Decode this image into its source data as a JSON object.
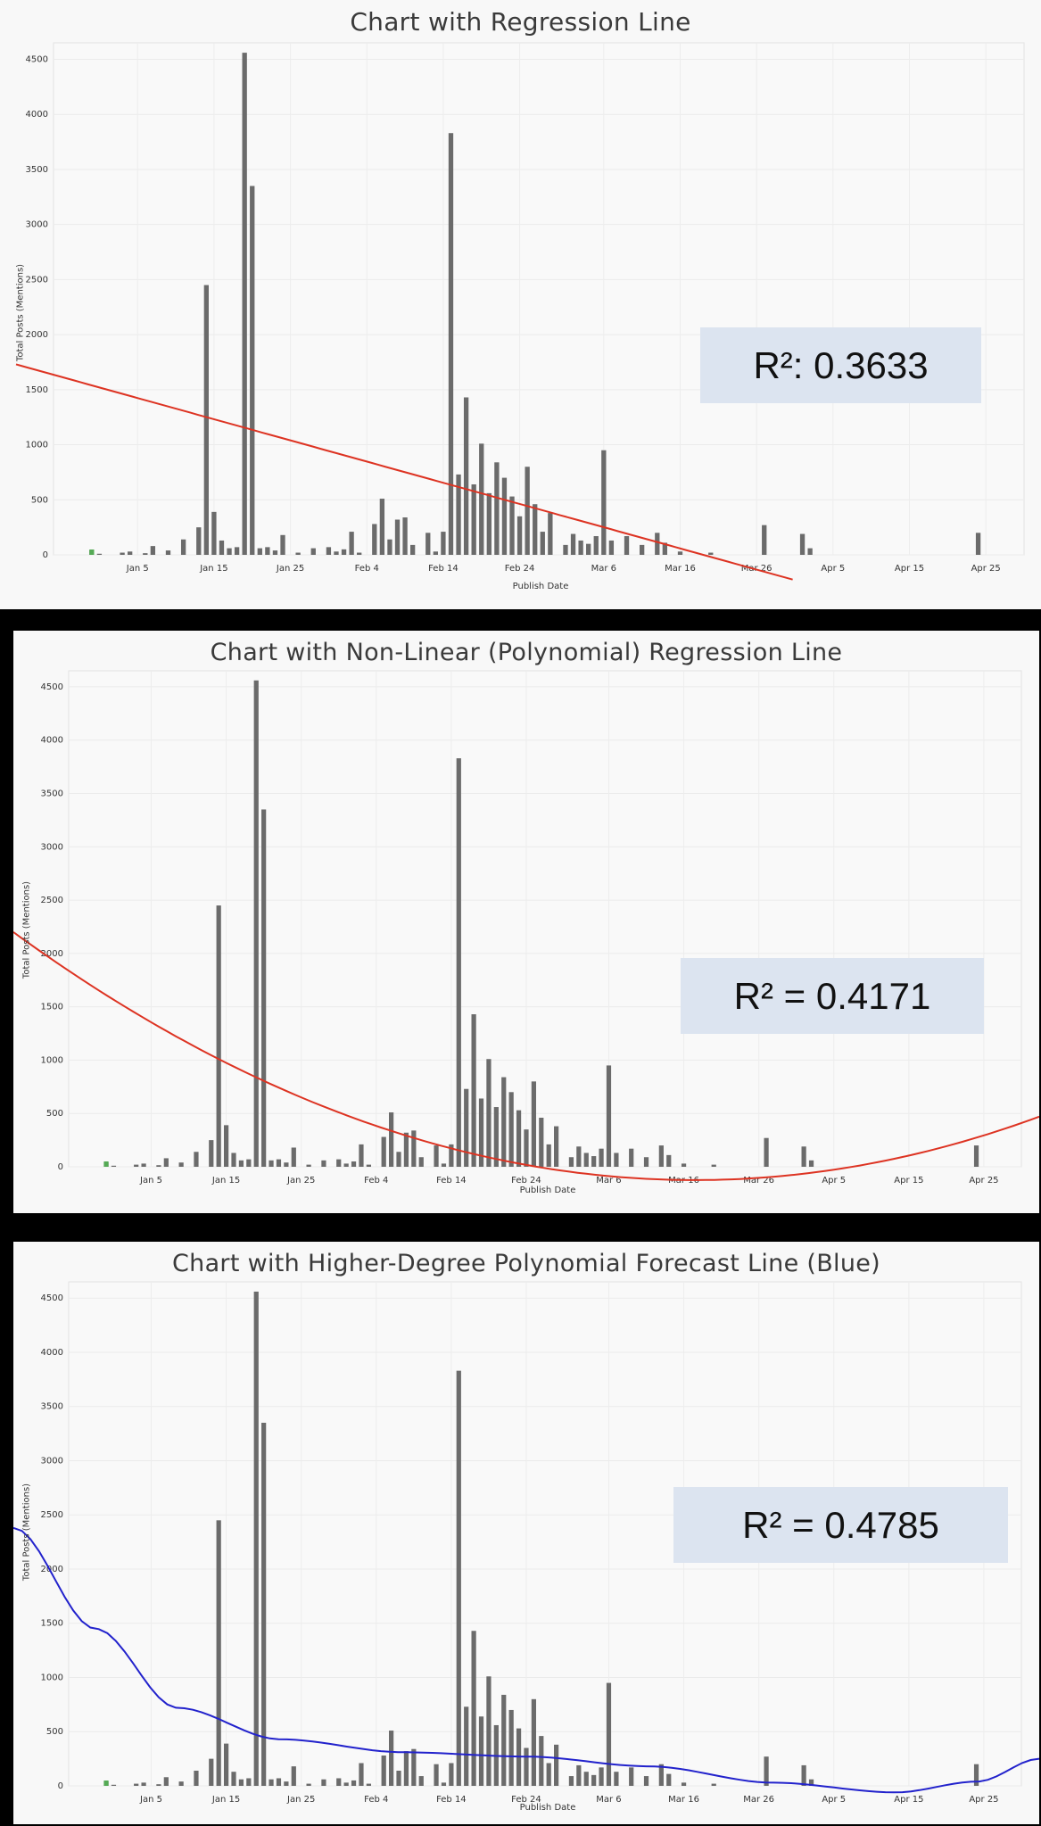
{
  "chart_data": [
    {
      "type": "bar",
      "title": "Chart with Regression Line",
      "xlabel": "Publish Date",
      "ylabel": "Total Posts (Mentions)",
      "annotation": "R²: 0.3633",
      "x_ticks": [
        "Jan 5",
        "Jan 15",
        "Jan 25",
        "Feb 4",
        "Feb 14",
        "Feb 24",
        "Mar 6",
        "Mar 16",
        "Mar 26",
        "Apr 5",
        "Apr 15",
        "Apr 25"
      ],
      "y_ticks": [
        0,
        500,
        1000,
        1500,
        2000,
        2500,
        3000,
        3500,
        4000,
        4500
      ],
      "xlim": [
        "Dec 25",
        "Apr 30"
      ],
      "ylim": [
        0,
        4650
      ],
      "grid": true,
      "regression": {
        "kind": "linear",
        "color": "#dd3322"
      }
    },
    {
      "type": "bar",
      "title": "Chart with Non-Linear (Polynomial) Regression Line",
      "xlabel": "Publish Date",
      "ylabel": "Total Posts (Mentions)",
      "annotation": "R² = 0.4171",
      "x_ticks": [
        "Jan 5",
        "Jan 15",
        "Jan 25",
        "Feb 4",
        "Feb 14",
        "Feb 24",
        "Mar 6",
        "Mar 16",
        "Mar 26",
        "Apr 5",
        "Apr 15",
        "Apr 25"
      ],
      "y_ticks": [
        0,
        500,
        1000,
        1500,
        2000,
        2500,
        3000,
        3500,
        4000,
        4500
      ],
      "xlim": [
        "Dec 25",
        "Apr 30"
      ],
      "ylim": [
        0,
        4650
      ],
      "grid": true,
      "regression": {
        "kind": "polynomial",
        "color": "#dd3322"
      }
    },
    {
      "type": "bar",
      "title": "Chart with Higher-Degree Polynomial Forecast Line (Blue)",
      "xlabel": "Publish Date",
      "ylabel": "Total Posts (Mentions)",
      "annotation": "R² = 0.4785",
      "x_ticks": [
        "Jan 5",
        "Jan 15",
        "Jan 25",
        "Feb 4",
        "Feb 14",
        "Feb 24",
        "Mar 6",
        "Mar 16",
        "Mar 26",
        "Apr 5",
        "Apr 15",
        "Apr 25"
      ],
      "y_ticks": [
        0,
        500,
        1000,
        1500,
        2000,
        2500,
        3000,
        3500,
        4000,
        4500
      ],
      "xlim": [
        "Dec 25",
        "Apr 30"
      ],
      "ylim": [
        0,
        4650
      ],
      "grid": true,
      "regression": {
        "kind": "high-degree polynomial",
        "color": "#2222cc"
      }
    }
  ],
  "bars": {
    "x": [
      "Dec 30",
      "Dec 31",
      "Jan 3",
      "Jan 4",
      "Jan 6",
      "Jan 7",
      "Jan 9",
      "Jan 11",
      "Jan 13",
      "Jan 14",
      "Jan 15",
      "Jan 16",
      "Jan 17",
      "Jan 18",
      "Jan 19",
      "Jan 20",
      "Jan 21",
      "Jan 22",
      "Jan 23",
      "Jan 24",
      "Jan 26",
      "Jan 28",
      "Jan 30",
      "Jan 31",
      "Feb 1",
      "Feb 2",
      "Feb 3",
      "Feb 5",
      "Feb 6",
      "Feb 7",
      "Feb 8",
      "Feb 9",
      "Feb 10",
      "Feb 12",
      "Feb 13",
      "Feb 14",
      "Feb 15",
      "Feb 16",
      "Feb 17",
      "Feb 18",
      "Feb 19",
      "Feb 20",
      "Feb 21",
      "Feb 22",
      "Feb 23",
      "Feb 24",
      "Feb 25",
      "Feb 26",
      "Feb 27",
      "Feb 28",
      "Mar 1",
      "Mar 2",
      "Mar 3",
      "Mar 4",
      "Mar 5",
      "Mar 6",
      "Mar 7",
      "Mar 9",
      "Mar 11",
      "Mar 13",
      "Mar 14",
      "Mar 16",
      "Mar 20",
      "Mar 27",
      "Apr 1",
      "Apr 2",
      "Apr 24"
    ],
    "values": [
      40,
      10,
      20,
      30,
      15,
      80,
      40,
      140,
      250,
      2450,
      390,
      130,
      60,
      70,
      4560,
      3350,
      60,
      70,
      40,
      180,
      20,
      60,
      70,
      30,
      50,
      210,
      20,
      280,
      510,
      140,
      320,
      340,
      90,
      200,
      30,
      210,
      3830,
      730,
      1430,
      640,
      1010,
      560,
      840,
      700,
      530,
      350,
      800,
      460,
      210,
      380,
      90,
      190,
      130,
      100,
      170,
      950,
      130,
      170,
      90,
      200,
      110,
      30,
      20,
      270,
      190,
      60,
      200
    ],
    "color": "#6b6b6b"
  }
}
